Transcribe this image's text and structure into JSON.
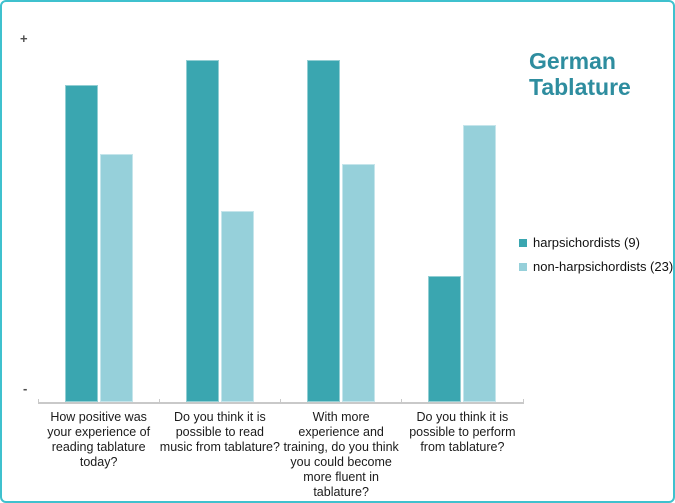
{
  "frame": {
    "border_color": "#3fc1ce",
    "background": "#ffffff"
  },
  "chart_data": {
    "type": "bar",
    "title": "German Tablature",
    "title_color": "#2e8d9f",
    "categories": [
      "How positive was\nyour experience of\nreading tablature\ntoday?",
      "Do you think it is\npossible to read\nmusic from tablature?",
      "With more\nexperience and\ntraining, do you think\nyou could become\nmore fluent in\ntablature?",
      "Do you think it is\npossible to perform\nfrom tablature?"
    ],
    "series": [
      {
        "name": "harpsichordists (9)",
        "color": "#3aa6b0",
        "values": [
          0.88,
          0.95,
          0.95,
          0.35
        ]
      },
      {
        "name": "non-harpsichordists (23)",
        "color": "#96d0da",
        "values": [
          0.69,
          0.53,
          0.66,
          0.77
        ]
      }
    ],
    "y_axis": {
      "top_label": "+",
      "bottom_label": "-",
      "numeric_ticks": false,
      "range": [
        0,
        1
      ]
    },
    "legend_position": "right",
    "grid": false,
    "note": "Y-axis is qualitative from negative (-) to positive (+); series values are relative bar heights as a fraction of the plot height."
  }
}
